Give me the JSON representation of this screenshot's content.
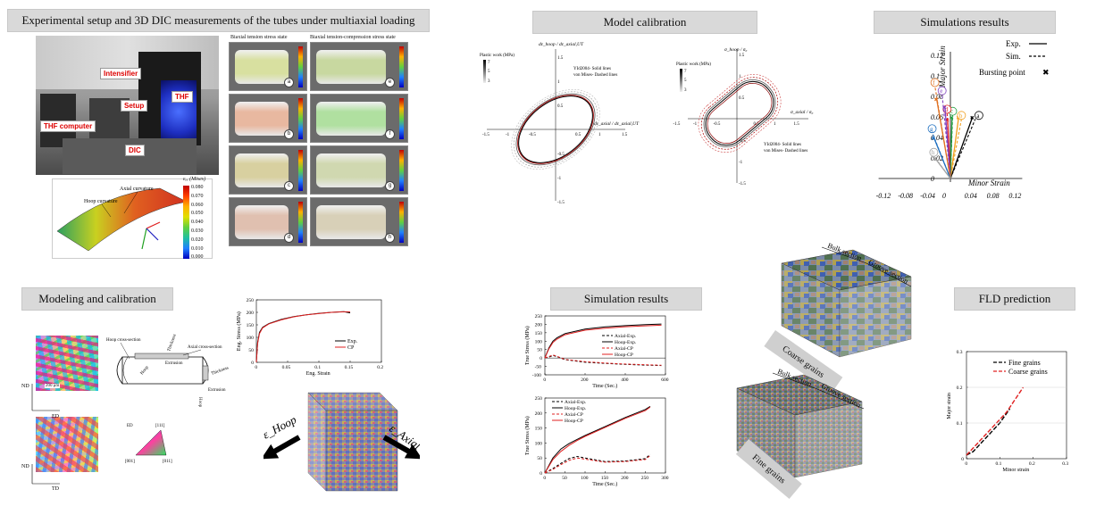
{
  "sections": {
    "exp_title": "Experimental setup and 3D DIC measurements of the tubes under multiaxial loading",
    "model_calib_title": "Model calibration",
    "sim_results_title": "Simulations results",
    "modeling_title": "Modeling and calibration",
    "sim_results2_title": "Simulation results",
    "fld_title": "FLD prediction"
  },
  "experiment": {
    "tags": [
      "Intensifier",
      "Setup",
      "THF",
      "THF computer",
      "DIC"
    ],
    "surface_labels": [
      "Axial curvature",
      "Hoop curvature"
    ],
    "colorbar_title": "εₑₓ (Mises)",
    "colorbar_ticks": [
      "0.080",
      "0.070",
      "0.060",
      "0.050",
      "0.040",
      "0.030",
      "0.020",
      "0.010",
      "0.000"
    ],
    "col_headers": [
      "Biaxial tension stress state",
      "Biaxial tension-compression stress state"
    ],
    "panel_letters_left": [
      "a",
      "b",
      "c",
      "d"
    ],
    "panel_letters_right": [
      "e",
      "f",
      "g",
      "h"
    ]
  },
  "calibration": {
    "left": {
      "ylabel": "dε_hoop / dε_axial,UT",
      "xlabel": "dε_axial / dε_axial,UT",
      "legend1": "YId2004- Solid lines",
      "legend2": "von Mises- Dashed lines",
      "cbar_title": "Plastic work (MPa)",
      "cbar_ticks": [
        "7",
        "5",
        "3"
      ],
      "xticks": [
        "-1.5",
        "-1",
        "-0.5",
        "0",
        "0.5",
        "1",
        "1.5"
      ],
      "yticks": [
        "1.5",
        "1",
        "0.5",
        "-0.5",
        "-1",
        "-1.5"
      ]
    },
    "right": {
      "ylabel": "σ_hoop / σ₀",
      "xlabel": "σ_axial / σ₀",
      "legend1": "YId2004- Solid lines",
      "legend2": "von Mises- Dashed lines",
      "cbar_title": "Plastic work (MPa)",
      "cbar_ticks": [
        "7",
        "5",
        "3"
      ],
      "xticks": [
        "-1.5",
        "-1",
        "-0.5",
        "0",
        "0.5",
        "1",
        "1.5"
      ],
      "yticks": [
        "1.5",
        "1",
        "0.5",
        "-0.5",
        "-1",
        "-1.5"
      ]
    }
  },
  "sim_strain": {
    "legend_exp": "Exp.",
    "legend_sim": "Sim.",
    "legend_burst": "Bursting point",
    "ylabel": "Major Strain",
    "xlabel": "Minor Strain",
    "yticks": [
      "0.12",
      "0.1",
      "0.08",
      "0.06",
      "0.04",
      "0.02",
      "0"
    ],
    "xticks": [
      "-0.12",
      "-0.08",
      "-0.04",
      "0",
      "0.04",
      "0.08",
      "0.12"
    ],
    "paths": [
      {
        "label": "a",
        "color": "#000000",
        "burst": [
          0.04,
          0.06
        ],
        "sim": [
          0.045,
          0.058
        ]
      },
      {
        "label": "b",
        "color": "#f0a020",
        "burst": [
          0.015,
          0.06
        ],
        "sim": [
          0.02,
          0.058
        ]
      },
      {
        "label": "c",
        "color": "#20a040",
        "burst": [
          0.003,
          0.06
        ],
        "sim": [
          0.004,
          0.062
        ]
      },
      {
        "label": "d",
        "color": "#e02020",
        "burst": [
          -0.005,
          0.058
        ],
        "sim": [
          -0.006,
          0.064
        ]
      },
      {
        "label": "e",
        "color": "#8040c0",
        "burst": [
          -0.01,
          0.07
        ],
        "sim": [
          -0.015,
          0.082
        ]
      },
      {
        "label": "f",
        "color": "#e07020",
        "burst": [
          -0.025,
          0.078
        ],
        "sim": [
          -0.028,
          0.09
        ]
      },
      {
        "label": "g",
        "color": "#2070c0",
        "burst": [
          -0.03,
          0.04
        ],
        "sim": [
          -0.033,
          0.045
        ]
      },
      {
        "label": "h",
        "color": "#a0a0a0",
        "burst": [
          -0.028,
          0.02
        ],
        "sim": [
          -0.03,
          0.022
        ]
      }
    ]
  },
  "modeling": {
    "ebsd_axis": [
      "ND",
      "ED",
      "TD"
    ],
    "scale_bar": "200 μm",
    "tube_labels": [
      "Hoop cross-section",
      "Axial cross-section",
      "Extrusion",
      "Thickness",
      "Hoop",
      "Thickness",
      "Extrusion",
      "Hoop"
    ],
    "ipf_labels": [
      "ED",
      "[111]",
      "[001]",
      "[011]"
    ],
    "stress_strain": {
      "type": "line",
      "xlabel": "Eng. Strain",
      "ylabel": "Eng. Stress (MPa)",
      "xlim": [
        0,
        0.2
      ],
      "ylim": [
        0,
        250
      ],
      "xticks": [
        "0",
        "0.05",
        "0.1",
        "0.15",
        "0.2"
      ],
      "yticks": [
        "0",
        "50",
        "100",
        "150",
        "200",
        "250"
      ],
      "series": [
        {
          "name": "Exp.",
          "color": "#000000",
          "x": [
            0,
            0.002,
            0.005,
            0.01,
            0.02,
            0.04,
            0.06,
            0.08,
            0.1,
            0.12,
            0.14,
            0.15
          ],
          "y": [
            0,
            80,
            120,
            140,
            155,
            172,
            183,
            190,
            196,
            200,
            203,
            198
          ]
        },
        {
          "name": "CP",
          "color": "#e02020",
          "x": [
            0,
            0.002,
            0.005,
            0.01,
            0.02,
            0.04,
            0.06,
            0.08,
            0.1,
            0.12,
            0.14,
            0.15
          ],
          "y": [
            0,
            75,
            115,
            138,
            154,
            170,
            182,
            190,
            195,
            200,
            202,
            202
          ]
        }
      ]
    },
    "cube_eps_hoop": "ε_Hoop",
    "cube_eps_axial": "ε_Axial"
  },
  "sim_curves": {
    "top": {
      "type": "line",
      "xlabel": "Time (Sec.)",
      "ylabel": "True Stress (MPa)",
      "xlim": [
        0,
        600
      ],
      "ylim": [
        -100,
        250
      ],
      "xticks": [
        "0",
        "200",
        "400",
        "600"
      ],
      "yticks": [
        "250",
        "200",
        "150",
        "100",
        "50",
        "0",
        "-50",
        "-100"
      ],
      "series": [
        {
          "name": "Axial-Exp.",
          "color": "#000000",
          "dash": "3,2",
          "x": [
            0,
            20,
            40,
            60,
            100,
            200,
            300,
            400,
            500,
            580
          ],
          "y": [
            0,
            5,
            15,
            8,
            -10,
            -25,
            -32,
            -38,
            -42,
            -45
          ]
        },
        {
          "name": "Hoop-Exp.",
          "color": "#000000",
          "dash": "",
          "x": [
            0,
            20,
            40,
            60,
            100,
            200,
            300,
            400,
            500,
            580
          ],
          "y": [
            0,
            60,
            100,
            120,
            145,
            172,
            185,
            192,
            198,
            202
          ]
        },
        {
          "name": "Axial-CP",
          "color": "#e02020",
          "dash": "3,2",
          "x": [
            0,
            20,
            40,
            60,
            100,
            200,
            300,
            400,
            500,
            580
          ],
          "y": [
            0,
            8,
            18,
            10,
            -8,
            -22,
            -30,
            -36,
            -40,
            -43
          ]
        },
        {
          "name": "Hoop-CP",
          "color": "#e02020",
          "dash": "",
          "x": [
            0,
            20,
            40,
            60,
            100,
            200,
            300,
            400,
            500,
            580
          ],
          "y": [
            0,
            55,
            92,
            112,
            138,
            165,
            177,
            186,
            191,
            195
          ]
        }
      ]
    },
    "bottom": {
      "type": "line",
      "xlabel": "Time (Sec.)",
      "ylabel": "True Stress (MPa)",
      "xlim": [
        0,
        300
      ],
      "ylim": [
        0,
        250
      ],
      "xticks": [
        "0",
        "50",
        "100",
        "150",
        "200",
        "250",
        "300"
      ],
      "yticks": [
        "0",
        "50",
        "100",
        "150",
        "200",
        "250"
      ],
      "series": [
        {
          "name": "Axial-Exp.",
          "color": "#000000",
          "dash": "3,2",
          "x": [
            0,
            20,
            40,
            60,
            80,
            100,
            150,
            200,
            250,
            262
          ],
          "y": [
            0,
            15,
            32,
            48,
            55,
            50,
            38,
            40,
            48,
            62
          ]
        },
        {
          "name": "Hoop-Exp.",
          "color": "#000000",
          "dash": "",
          "x": [
            0,
            20,
            40,
            60,
            80,
            100,
            150,
            200,
            250,
            262
          ],
          "y": [
            0,
            50,
            80,
            98,
            112,
            125,
            155,
            185,
            212,
            222
          ]
        },
        {
          "name": "Axial-CP",
          "color": "#e02020",
          "dash": "3,2",
          "x": [
            0,
            20,
            40,
            60,
            80,
            100,
            150,
            200,
            250,
            262
          ],
          "y": [
            0,
            12,
            28,
            42,
            50,
            46,
            36,
            38,
            45,
            58
          ]
        },
        {
          "name": "Hoop-CP",
          "color": "#e02020",
          "dash": "",
          "x": [
            0,
            20,
            40,
            60,
            80,
            100,
            150,
            200,
            250,
            262
          ],
          "y": [
            0,
            45,
            72,
            92,
            108,
            122,
            152,
            182,
            208,
            220
          ]
        }
      ]
    }
  },
  "grains": {
    "coarse_label": "Coarse grains",
    "fine_label": "Fine grains",
    "bulk_section": "Bulk section",
    "groove_section": "Groove section"
  },
  "fld": {
    "type": "line",
    "xlabel": "Minor strain",
    "ylabel": "Major strain",
    "xlim": [
      0,
      0.3
    ],
    "ylim": [
      0,
      0.3
    ],
    "xticks": [
      "0",
      "0.1",
      "0.2",
      "0.3"
    ],
    "yticks": [
      "0",
      "0.1",
      "0.2",
      "0.3"
    ],
    "series": [
      {
        "name": "Fine grains",
        "color": "#000000",
        "x": [
          0,
          0.02,
          0.06,
          0.1,
          0.13
        ],
        "y": [
          0.01,
          0.02,
          0.06,
          0.1,
          0.14
        ]
      },
      {
        "name": "Coarse grains",
        "color": "#e02020",
        "x": [
          0,
          0.02,
          0.06,
          0.12,
          0.17
        ],
        "y": [
          0.01,
          0.03,
          0.07,
          0.13,
          0.2
        ]
      }
    ]
  }
}
